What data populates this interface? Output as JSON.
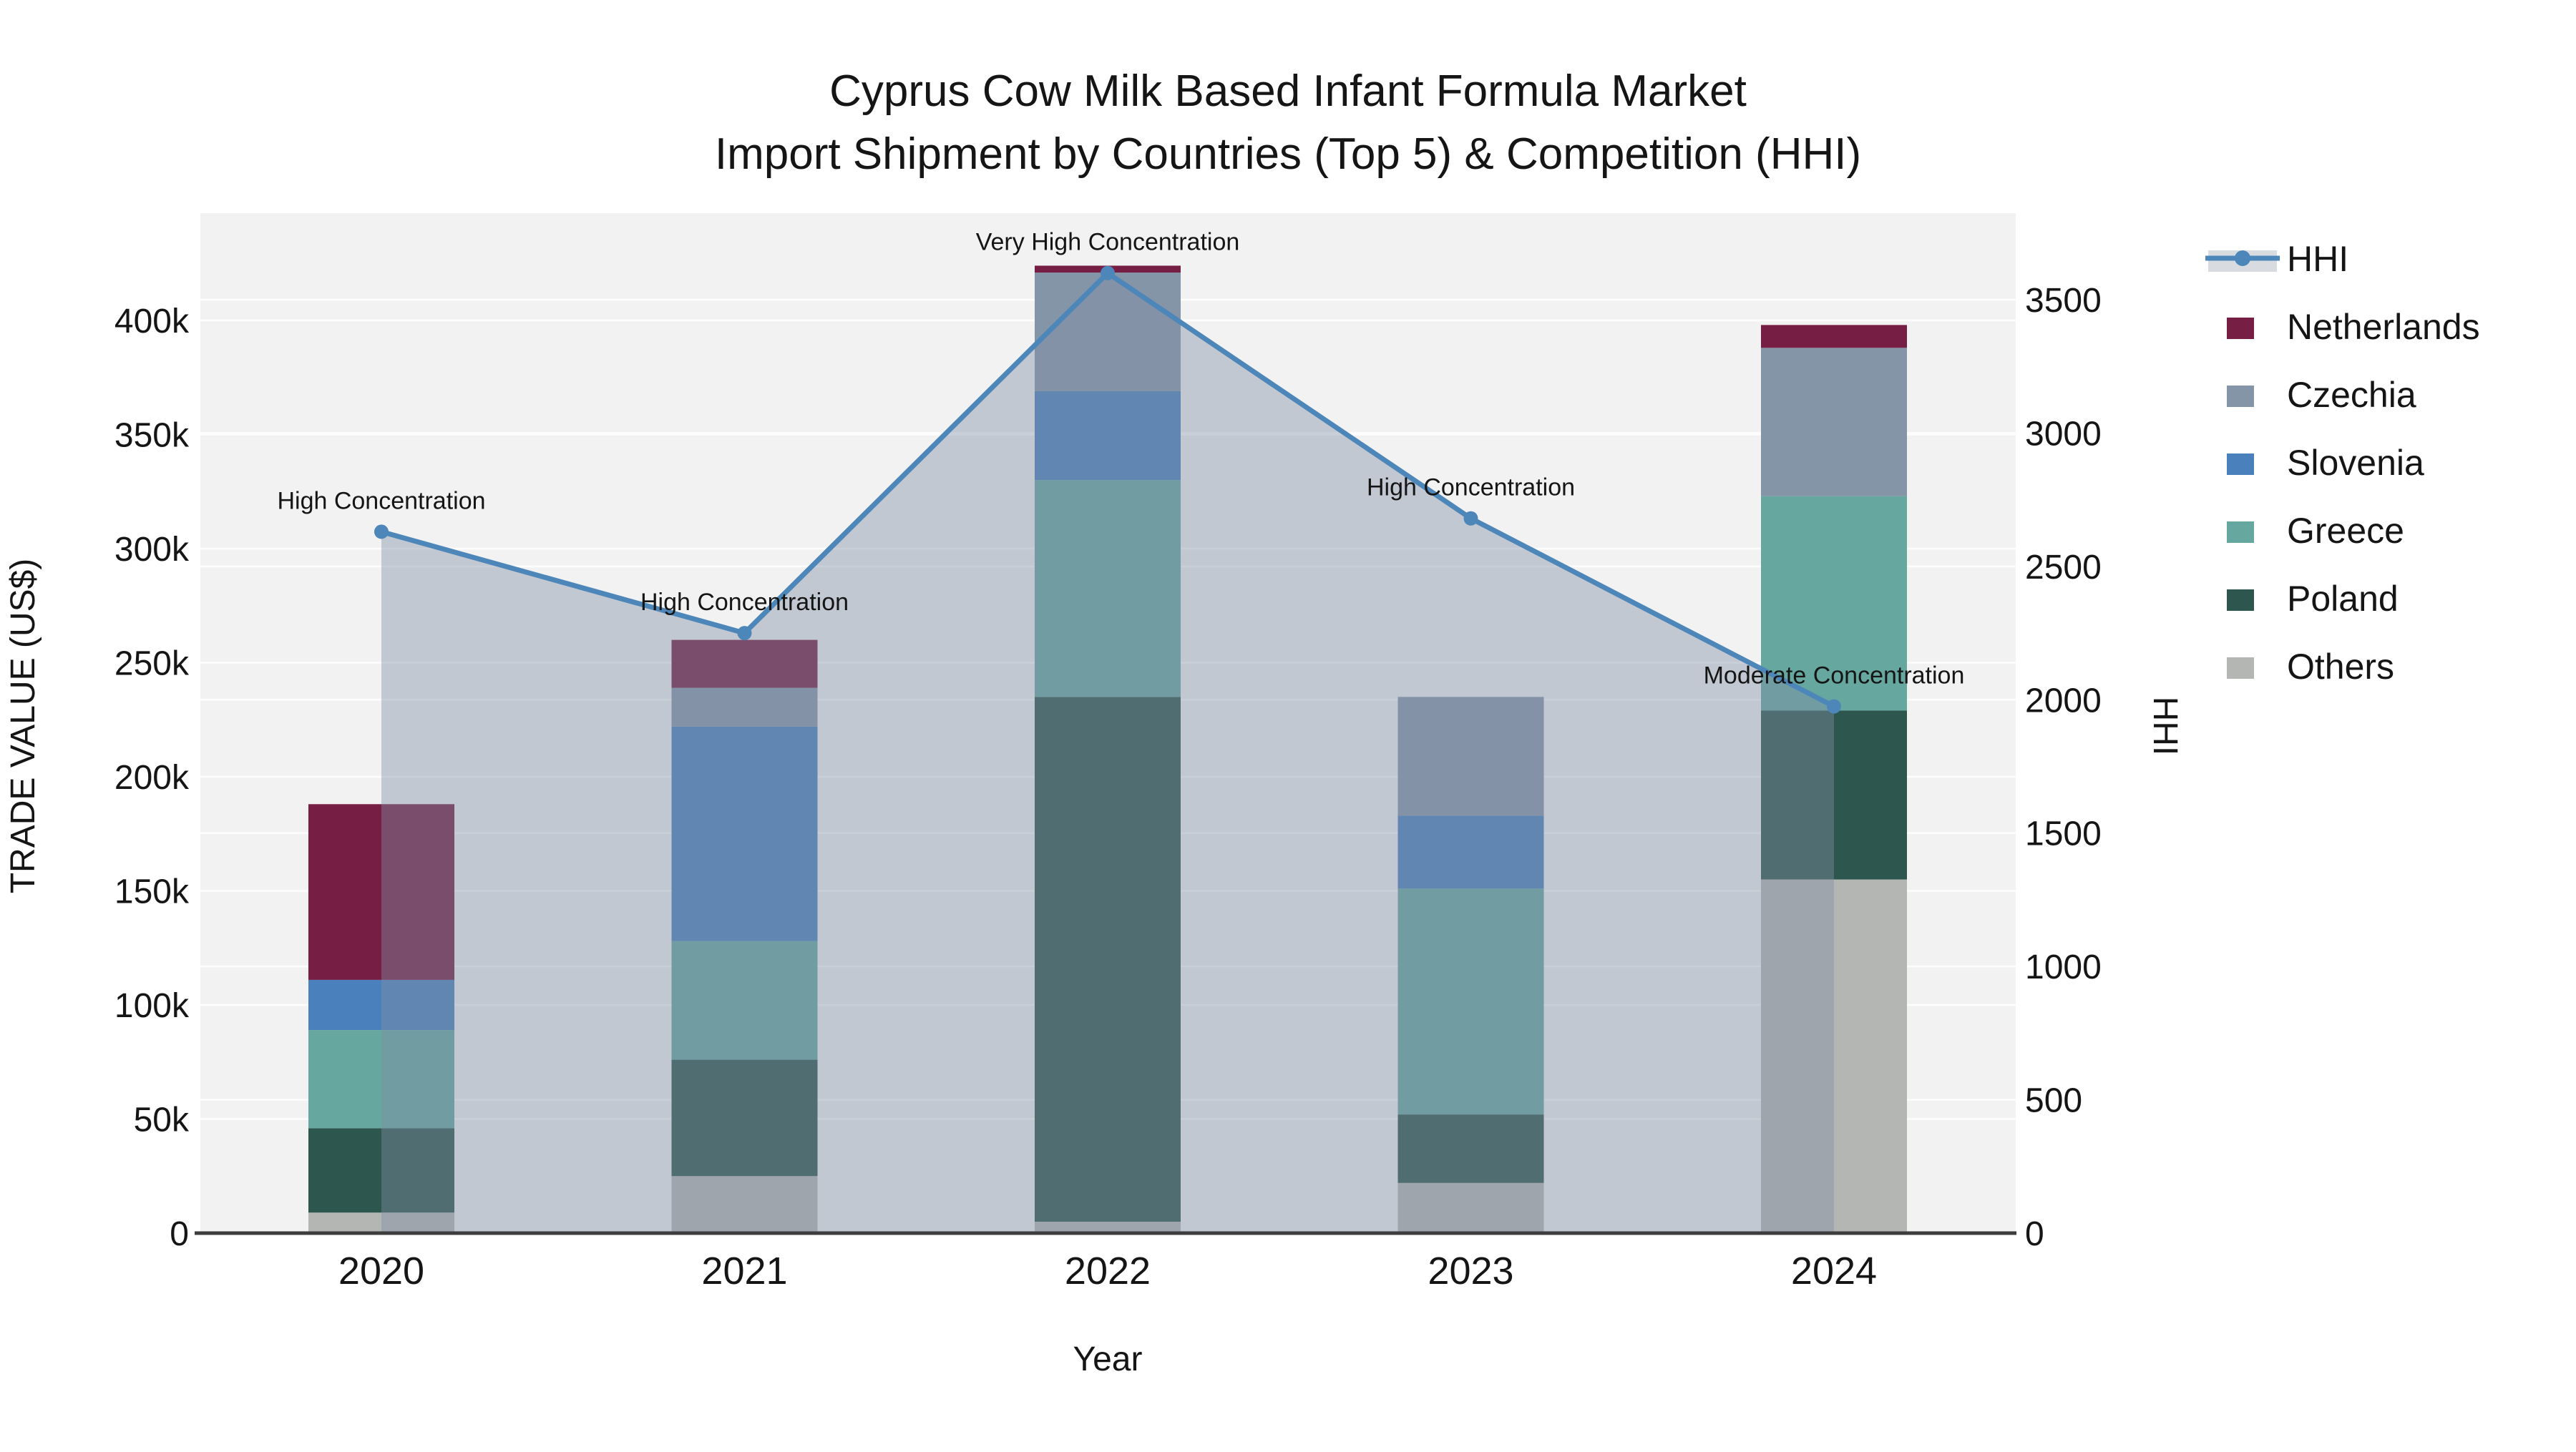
{
  "title": {
    "line1": "Cyprus Cow Milk Based Infant Formula Market",
    "line2": "Import Shipment by Countries (Top 5) & Competition (HHI)"
  },
  "chart_data": {
    "type": "bar+line",
    "subtype": "stacked-bars-with-dual-axis-line",
    "title": "Cyprus Cow Milk Based Infant Formula Market — Import Shipment by Countries (Top 5) & Competition (HHI)",
    "categories": [
      "2020",
      "2021",
      "2022",
      "2023",
      "2024"
    ],
    "unit": "thousand US$",
    "bar_series": [
      {
        "name": "Others",
        "color": "#b4b6b4",
        "values": [
          9,
          25,
          5,
          22,
          155
        ]
      },
      {
        "name": "Poland",
        "color": "#2d564e",
        "values": [
          37,
          51,
          230,
          30,
          74
        ]
      },
      {
        "name": "Greece",
        "color": "#66a8a0",
        "values": [
          43,
          52,
          95,
          99,
          94
        ]
      },
      {
        "name": "Slovenia",
        "color": "#4a80bb",
        "values": [
          22,
          94,
          39,
          32,
          0
        ]
      },
      {
        "name": "Czechia",
        "color": "#8595a8",
        "values": [
          0,
          17,
          52,
          52,
          65
        ]
      },
      {
        "name": "Netherlands",
        "color": "#771e44",
        "values": [
          77,
          21,
          3,
          0,
          10
        ]
      }
    ],
    "bar_totals_k": [
      188,
      260,
      424,
      235,
      398
    ],
    "line_series": {
      "name": "HHI",
      "color": "#4d86b8",
      "area_fill": "rgba(128,142,164,0.42)",
      "values": [
        2630,
        2250,
        3600,
        2680,
        1975
      ]
    },
    "annotations": [
      {
        "year": "2020",
        "text": "High Concentration"
      },
      {
        "year": "2021",
        "text": "High Concentration"
      },
      {
        "year": "2022",
        "text": "Very High Concentration"
      },
      {
        "year": "2023",
        "text": "High Concentration"
      },
      {
        "year": "2024",
        "text": "Moderate Concentration"
      }
    ],
    "y_left": {
      "label": "TRADE VALUE (US$)",
      "tick_values": [
        0,
        50,
        100,
        150,
        200,
        250,
        300,
        350,
        400
      ],
      "tick_labels": [
        "0",
        "50k",
        "100k",
        "150k",
        "200k",
        "250k",
        "300k",
        "350k",
        "400k"
      ],
      "max": 400
    },
    "y_right": {
      "label": "HHI",
      "tick_values": [
        0,
        500,
        1000,
        1500,
        2000,
        2500,
        3000,
        3500
      ],
      "tick_labels": [
        "0",
        "500",
        "1000",
        "1500",
        "2000",
        "2500",
        "3000",
        "3500"
      ],
      "max": 3500
    },
    "x": {
      "label": "Year"
    },
    "grid": "on",
    "legend_position": "right"
  },
  "legend": {
    "items": [
      {
        "label": "HHI",
        "type": "line",
        "color": "#4d86b8",
        "band_color": "#d8dce1"
      },
      {
        "label": "Netherlands",
        "type": "swatch",
        "color": "#771e44"
      },
      {
        "label": "Czechia",
        "type": "swatch",
        "color": "#8595a8"
      },
      {
        "label": "Slovenia",
        "type": "swatch",
        "color": "#4a80bb"
      },
      {
        "label": "Greece",
        "type": "swatch",
        "color": "#66a8a0"
      },
      {
        "label": "Poland",
        "type": "swatch",
        "color": "#2d564e"
      },
      {
        "label": "Others",
        "type": "swatch",
        "color": "#b4b6b4"
      }
    ]
  },
  "colors": {
    "plot_background": "#f2f2f2",
    "figure_background": "#ffffff",
    "gridline": "#ffffff",
    "axis_line": "#3d3d3d",
    "text": "#151515"
  }
}
